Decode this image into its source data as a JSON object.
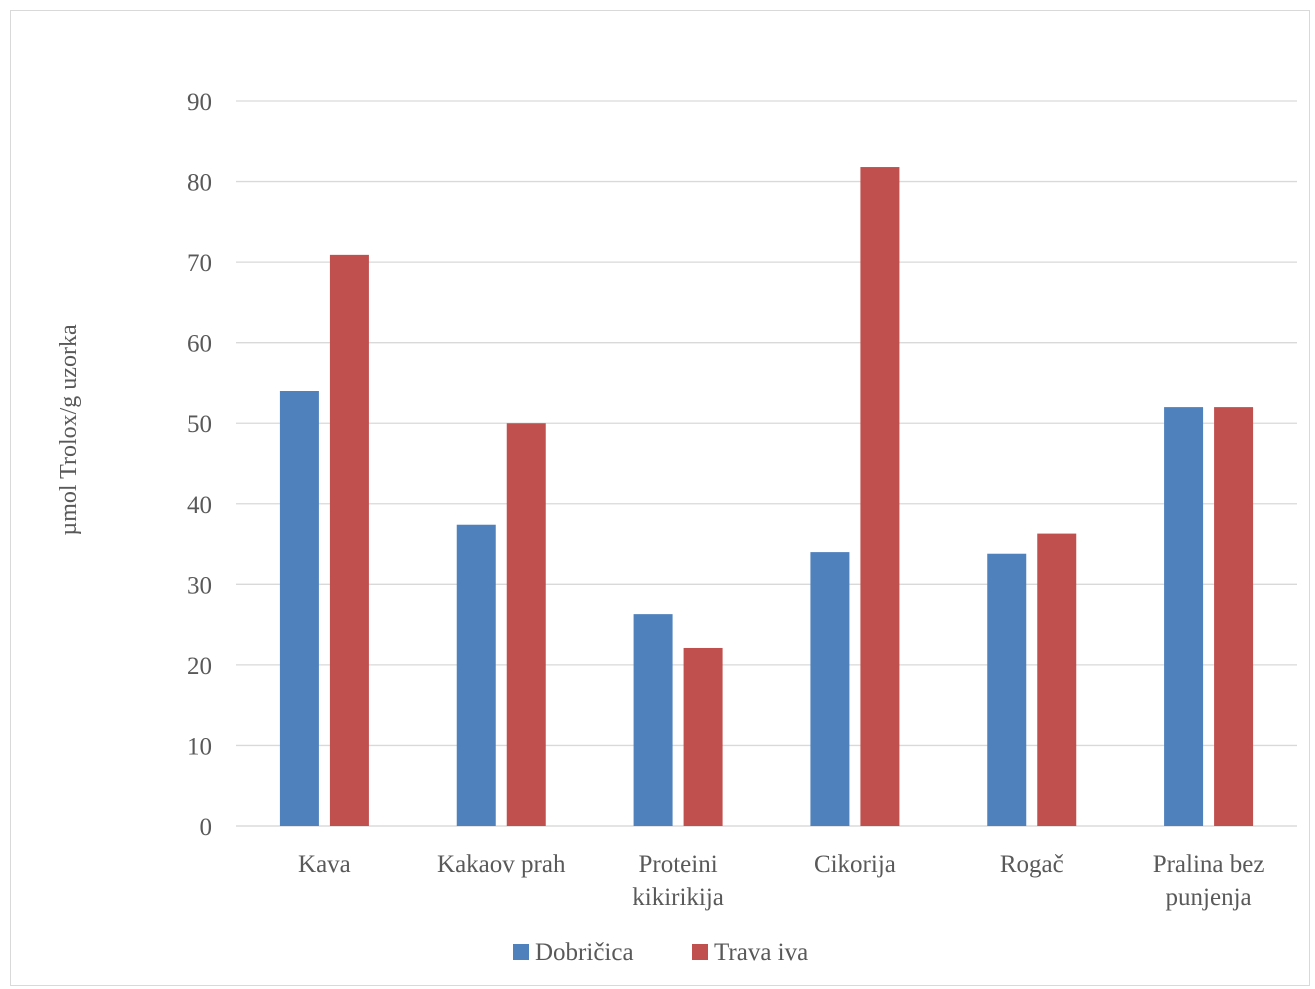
{
  "chart_data": {
    "type": "bar",
    "title": "",
    "xlabel": "",
    "ylabel": "µmol Trolox/g uzorka",
    "ylim": [
      0,
      90
    ],
    "yticks": [
      0,
      10,
      20,
      30,
      40,
      50,
      60,
      70,
      80,
      90
    ],
    "grid": true,
    "legend_position": "bottom",
    "categories": [
      [
        "Kava"
      ],
      [
        "Kakaov prah"
      ],
      [
        "Proteini",
        "kikirikija"
      ],
      [
        "Cikorija"
      ],
      [
        "Rogač"
      ],
      [
        "Pralina bez",
        "punjenja"
      ]
    ],
    "series": [
      {
        "name": "Dobričica",
        "color": "#4f81bd",
        "values": [
          54,
          37.4,
          26.3,
          34,
          33.8,
          52
        ]
      },
      {
        "name": "Trava iva",
        "color": "#c0504d",
        "values": [
          70.9,
          50,
          22.1,
          81.8,
          36.3,
          52
        ]
      }
    ]
  }
}
